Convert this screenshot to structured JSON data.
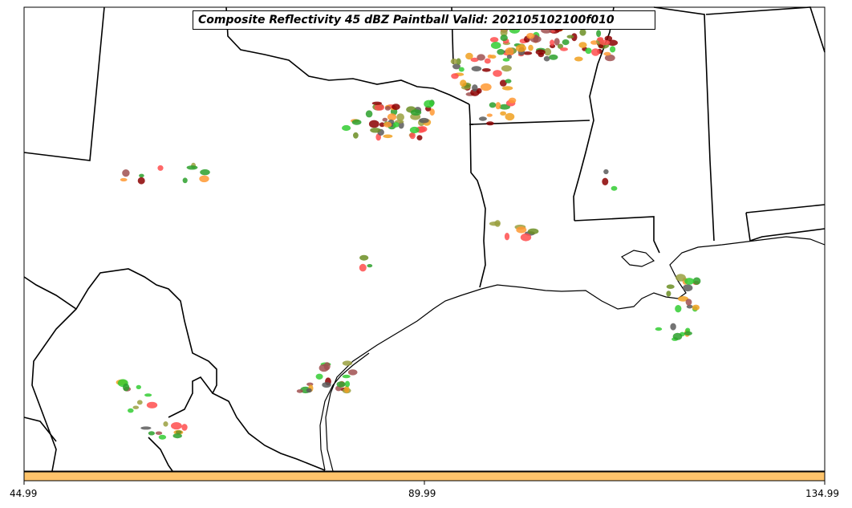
{
  "title": "Composite Reflectivity 45 dBZ Paintball Valid: 202105102100f010",
  "colorbar": {
    "color": "#ffc46b",
    "ticks": [
      "44.99",
      "89.99",
      "134.99"
    ]
  },
  "colors": {
    "paintball": [
      "#ff4d4d",
      "#33cc33",
      "#ff9933",
      "#f0a020",
      "#8b0000",
      "#5a5a5a",
      "#a05050",
      "#9aa040",
      "#6b8e23",
      "#2ca02c"
    ]
  }
}
